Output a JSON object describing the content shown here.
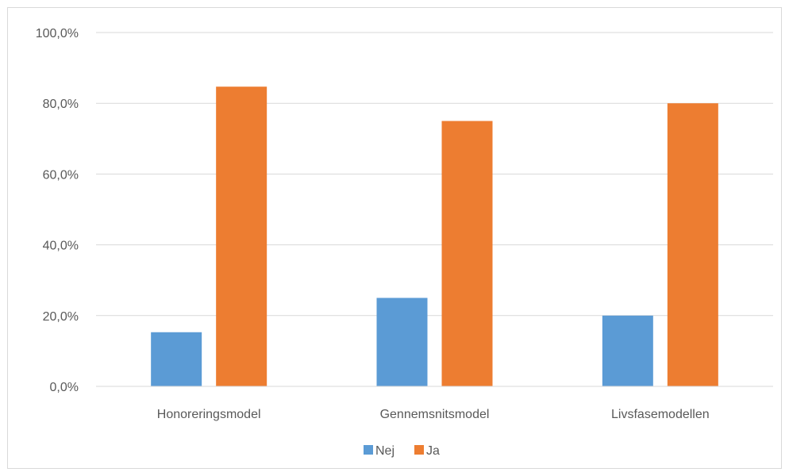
{
  "chart_data": {
    "type": "bar",
    "title": "",
    "xlabel": "",
    "ylabel": "",
    "categories": [
      "Honoreringsmodel",
      "Gennemsnitsmodel",
      "Livsfasemodellen"
    ],
    "series": [
      {
        "name": "Nej",
        "values": [
          15.3,
          25.0,
          20.0
        ],
        "color": "#5b9bd5"
      },
      {
        "name": "Ja",
        "values": [
          84.7,
          75.0,
          80.0
        ],
        "color": "#ed7d31"
      }
    ],
    "ylim": [
      0,
      100
    ],
    "y_ticks": [
      0,
      20,
      40,
      60,
      80,
      100
    ],
    "y_tick_labels": [
      "0,0%",
      "20,0%",
      "40,0%",
      "60,0%",
      "80,0%",
      "100,0%"
    ],
    "grid": true,
    "legend_position": "bottom"
  }
}
